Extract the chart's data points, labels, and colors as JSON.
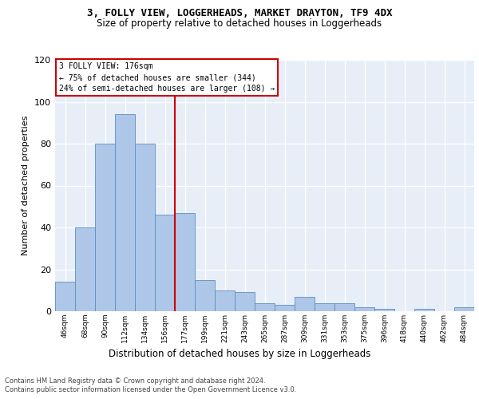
{
  "title_line1": "3, FOLLY VIEW, LOGGERHEADS, MARKET DRAYTON, TF9 4DX",
  "title_line2": "Size of property relative to detached houses in Loggerheads",
  "xlabel": "Distribution of detached houses by size in Loggerheads",
  "ylabel": "Number of detached properties",
  "categories": [
    "46sqm",
    "68sqm",
    "90sqm",
    "112sqm",
    "134sqm",
    "156sqm",
    "177sqm",
    "199sqm",
    "221sqm",
    "243sqm",
    "265sqm",
    "287sqm",
    "309sqm",
    "331sqm",
    "353sqm",
    "375sqm",
    "396sqm",
    "418sqm",
    "440sqm",
    "462sqm",
    "484sqm"
  ],
  "values": [
    14,
    40,
    80,
    94,
    80,
    46,
    47,
    15,
    10,
    9,
    4,
    3,
    7,
    4,
    4,
    2,
    1,
    0,
    1,
    0,
    2
  ],
  "bar_color": "#aec6e8",
  "bar_edge_color": "#5a8fc2",
  "ylim": [
    0,
    120
  ],
  "yticks": [
    0,
    20,
    40,
    60,
    80,
    100,
    120
  ],
  "annotation_line1": "3 FOLLY VIEW: 176sqm",
  "annotation_line2": "← 75% of detached houses are smaller (344)",
  "annotation_line3": "24% of semi-detached houses are larger (108) →",
  "vline_color": "#cc0000",
  "footer1": "Contains HM Land Registry data © Crown copyright and database right 2024.",
  "footer2": "Contains public sector information licensed under the Open Government Licence v3.0.",
  "background_color": "#e8eef8"
}
